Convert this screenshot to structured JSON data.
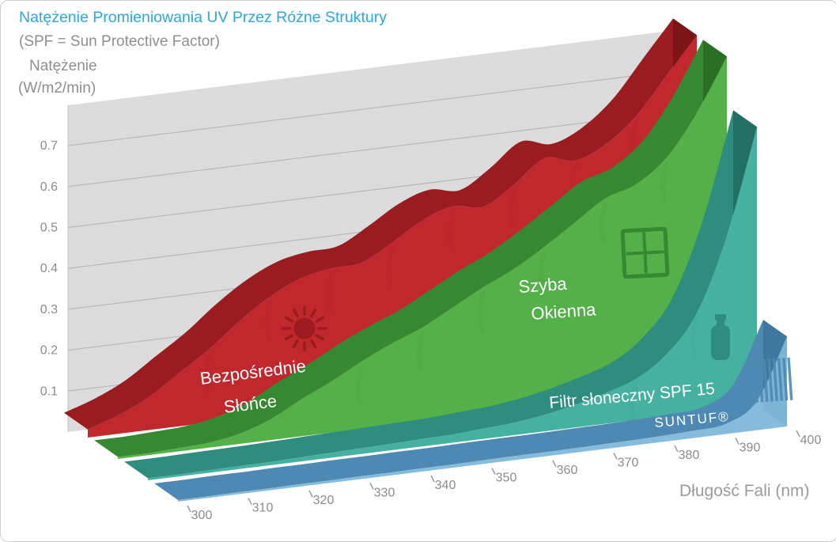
{
  "chart_data": {
    "type": "area",
    "variant": "3d-ribbon",
    "title": "Natężenie Promieniowania UV Przez Różne Struktury",
    "subtitle": "(SPF = Sun Protective Factor)",
    "ylabel_line1": "Natężenie",
    "ylabel_line2": "(W/m2/min)",
    "xlabel": "Długość Fali (nm)",
    "title_color": "#29a9e0",
    "axis_text_color": "#8c8c8c",
    "x": [
      300,
      305,
      310,
      315,
      320,
      325,
      330,
      335,
      340,
      345,
      350,
      355,
      360,
      365,
      370,
      375,
      380,
      385,
      390,
      395,
      400
    ],
    "x_ticks": [
      300,
      310,
      320,
      330,
      340,
      350,
      360,
      370,
      380,
      390,
      400
    ],
    "y_ticks": [
      0.1,
      0.2,
      0.3,
      0.4,
      0.5,
      0.6,
      0.7
    ],
    "ylim": [
      0,
      0.85
    ],
    "series": [
      {
        "name": "Bezpośrednie Słońce",
        "label_lines": [
          "Bezpośrednie",
          "Słońce"
        ],
        "icon": "sun-icon",
        "color": "#c1282e",
        "dark": "#9a1b20",
        "cap": "#7c1418",
        "values": [
          0.02,
          0.045,
          0.08,
          0.13,
          0.18,
          0.24,
          0.29,
          0.325,
          0.34,
          0.345,
          0.385,
          0.43,
          0.455,
          0.445,
          0.49,
          0.545,
          0.53,
          0.56,
          0.62,
          0.71,
          0.8
        ]
      },
      {
        "name": "Szyba Okienna",
        "label_lines": [
          "Szyba",
          "Okienna"
        ],
        "icon": "window-icon",
        "color": "#54b049",
        "dark": "#378832",
        "cap": "#2b6f27",
        "values": [
          0.005,
          0.005,
          0.008,
          0.012,
          0.025,
          0.05,
          0.09,
          0.125,
          0.165,
          0.2,
          0.23,
          0.27,
          0.31,
          0.345,
          0.39,
          0.44,
          0.49,
          0.515,
          0.57,
          0.67,
          0.8
        ]
      },
      {
        "name": "Filtr słoneczny SPF 15",
        "label_lines": [
          "Filtr słoneczny SPF 15"
        ],
        "icon": "sunscreen-bottle-icon",
        "color": "#47b1a1",
        "dark": "#2e8d7f",
        "cap": "#246f64",
        "values": [
          0.005,
          0.005,
          0.006,
          0.007,
          0.008,
          0.01,
          0.012,
          0.014,
          0.016,
          0.018,
          0.02,
          0.025,
          0.03,
          0.04,
          0.055,
          0.075,
          0.1,
          0.15,
          0.24,
          0.42,
          0.68
        ]
      },
      {
        "name": "SUNTUF®",
        "label_lines": [
          "SUNTUF®"
        ],
        "icon": "corrugated-panel-icon",
        "color": "#7fb7d9",
        "dark": "#4e89b4",
        "cap": "#3f77a0",
        "values": [
          0.004,
          0.004,
          0.005,
          0.005,
          0.006,
          0.006,
          0.007,
          0.007,
          0.008,
          0.008,
          0.009,
          0.01,
          0.01,
          0.011,
          0.012,
          0.013,
          0.015,
          0.018,
          0.025,
          0.07,
          0.22
        ]
      }
    ]
  }
}
